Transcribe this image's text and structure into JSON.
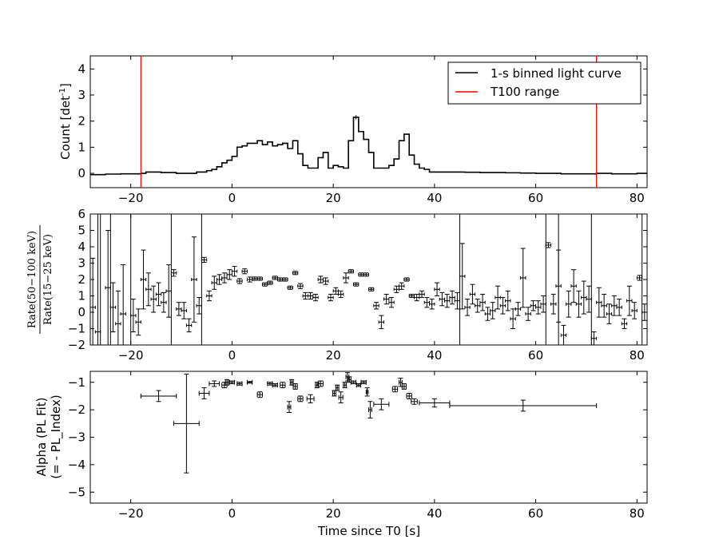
{
  "chart_data": [
    {
      "type": "line",
      "panel": "light-curve",
      "ylabel": "Count [det",
      "ylabel_sup": "-1",
      "ylabel_close": "]",
      "xlim": [
        -28,
        82
      ],
      "ylim": [
        -0.55,
        4.5
      ],
      "yticks": [
        0,
        1,
        2,
        3,
        4
      ],
      "xticks": [
        -20,
        0,
        20,
        40,
        60,
        80
      ],
      "legend_position": "top-right",
      "series": [
        {
          "name": "1-s binned light curve",
          "color": "#000000",
          "style": "step",
          "x": [
            -28,
            -27,
            -26,
            -25,
            -24,
            -23,
            -22,
            -21,
            -20,
            -19,
            -18,
            -17,
            -16,
            -15,
            -14,
            -13,
            -12,
            -11,
            -10,
            -9,
            -8,
            -7,
            -6,
            -5,
            -4,
            -3,
            -2,
            -1,
            0,
            1,
            2,
            3,
            4,
            5,
            6,
            7,
            8,
            9,
            10,
            11,
            12,
            13,
            14,
            15,
            16,
            17,
            18,
            19,
            20,
            21,
            22,
            23,
            24,
            25,
            26,
            27,
            28,
            29,
            30,
            31,
            32,
            33,
            34,
            35,
            36,
            37,
            38,
            39,
            40,
            41,
            42,
            43,
            44,
            45,
            46,
            47,
            48,
            49,
            50,
            51,
            52,
            53,
            54,
            55,
            56,
            57,
            58,
            59,
            60,
            61,
            62,
            63,
            64,
            65,
            66,
            67,
            68,
            69,
            70,
            71,
            72,
            73,
            74,
            75,
            76,
            77,
            78,
            79,
            80,
            81
          ],
          "y": [
            -0.05,
            -0.05,
            -0.05,
            -0.03,
            -0.03,
            -0.03,
            -0.02,
            -0.02,
            -0.02,
            -0.02,
            0.0,
            0.05,
            0.05,
            0.05,
            0.03,
            0.03,
            0.03,
            0.0,
            0.0,
            0.0,
            0.0,
            0.05,
            0.05,
            0.1,
            0.15,
            0.25,
            0.4,
            0.5,
            0.65,
            1.0,
            1.05,
            1.15,
            1.15,
            1.25,
            1.1,
            1.2,
            1.05,
            1.1,
            1.15,
            0.95,
            1.25,
            0.75,
            0.3,
            0.2,
            0.2,
            0.6,
            0.8,
            0.2,
            0.3,
            0.25,
            0.2,
            1.25,
            2.15,
            1.6,
            1.3,
            0.8,
            0.2,
            0.2,
            0.2,
            0.3,
            0.55,
            1.25,
            1.5,
            0.7,
            0.35,
            0.2,
            0.15,
            0.05,
            0.05,
            0.05,
            0.05,
            0.05,
            0.05,
            0.05,
            0.04,
            0.04,
            0.04,
            0.03,
            0.03,
            0.03,
            0.03,
            0.03,
            0.02,
            0.02,
            0.02,
            0.01,
            0.01,
            0.01,
            0.0,
            0.0,
            0.0,
            0.0,
            0.0,
            -0.02,
            -0.02,
            -0.02,
            -0.02,
            -0.02,
            -0.02,
            -0.02,
            0.0,
            0.0,
            0.0,
            -0.02,
            -0.02,
            -0.02,
            -0.02,
            -0.02,
            0.0,
            0.0
          ],
          "error_at": [
            {
              "x": 24.5,
              "y": 2.15,
              "err": 0.08
            }
          ]
        },
        {
          "name": "T100 range",
          "color": "#ff0000",
          "style": "vline",
          "x": [
            -18,
            72
          ]
        }
      ]
    },
    {
      "type": "scatter",
      "panel": "hardness-ratio",
      "ylabel_numerator": "Rate(50−100 keV)",
      "ylabel_denominator": "Rate(15−25 keV)",
      "xlim": [
        -28,
        82
      ],
      "ylim": [
        -2,
        6
      ],
      "yticks": [
        -2,
        -1,
        0,
        1,
        2,
        3,
        4,
        5,
        6
      ],
      "xticks": [
        -20,
        0,
        20,
        40,
        60,
        80
      ],
      "series": [
        {
          "name": "",
          "color": "#000000",
          "points": [
            [
              -27.5,
              0.3,
              3.0
            ],
            [
              -26.5,
              -1.2,
              8.0
            ],
            [
              -24.5,
              1.5,
              3.5
            ],
            [
              -23.5,
              0.3,
              1.5
            ],
            [
              -22.5,
              -0.7,
              2.0
            ],
            [
              -21.5,
              -0.1,
              3.0
            ],
            [
              -19.5,
              -0.2,
              1.0
            ],
            [
              -18.5,
              -0.6,
              0.8
            ],
            [
              -17.5,
              2.0,
              1.8
            ],
            [
              -16.5,
              1.4,
              1.0
            ],
            [
              -15.5,
              0.8,
              0.8
            ],
            [
              -14.5,
              1.1,
              0.7
            ],
            [
              -13.5,
              0.6,
              0.6
            ],
            [
              -12.5,
              1.3,
              1.6
            ],
            [
              -11.5,
              2.4,
              0.2
            ],
            [
              -10.5,
              0.2,
              0.4
            ],
            [
              -9.5,
              0.1,
              0.5
            ],
            [
              -8.5,
              -0.8,
              0.4
            ],
            [
              -7.5,
              2.0,
              2.6
            ],
            [
              -6.5,
              0.4,
              0.5
            ],
            [
              -5.5,
              3.2,
              0.15
            ],
            [
              -4.5,
              1.0,
              0.3
            ],
            [
              -3.5,
              1.8,
              0.4
            ],
            [
              -2.5,
              2.0,
              0.3
            ],
            [
              -1.5,
              2.1,
              0.3
            ],
            [
              -0.5,
              2.3,
              0.3
            ],
            [
              0.5,
              2.5,
              0.3
            ],
            [
              1.5,
              1.9,
              0.15
            ],
            [
              2.5,
              2.5,
              0.15
            ],
            [
              3.5,
              2.0,
              0.15
            ],
            [
              4.5,
              2.05,
              0.1
            ],
            [
              5.5,
              2.05,
              0.1
            ],
            [
              6.5,
              1.7,
              0.1
            ],
            [
              7.5,
              1.8,
              0.1
            ],
            [
              8.5,
              2.1,
              0.1
            ],
            [
              9.5,
              2.0,
              0.1
            ],
            [
              10.5,
              2.0,
              0.1
            ],
            [
              11.5,
              1.5,
              0.1
            ],
            [
              12.5,
              2.4,
              0.1
            ],
            [
              13.5,
              1.6,
              0.15
            ],
            [
              14.5,
              1.0,
              0.2
            ],
            [
              15.5,
              1.0,
              0.2
            ],
            [
              16.5,
              0.9,
              0.2
            ],
            [
              17.5,
              2.0,
              0.2
            ],
            [
              18.5,
              1.9,
              0.2
            ],
            [
              19.5,
              0.9,
              0.2
            ],
            [
              20.5,
              1.3,
              0.2
            ],
            [
              21.5,
              1.1,
              0.2
            ],
            [
              22.5,
              2.1,
              0.3
            ],
            [
              23.5,
              2.5,
              0.1
            ],
            [
              24.5,
              1.7,
              0.1
            ],
            [
              25.5,
              2.3,
              0.1
            ],
            [
              26.5,
              2.3,
              0.1
            ],
            [
              27.5,
              1.4,
              0.1
            ],
            [
              28.5,
              0.4,
              0.2
            ],
            [
              29.5,
              -0.6,
              0.4
            ],
            [
              30.5,
              0.8,
              0.3
            ],
            [
              31.5,
              0.6,
              0.3
            ],
            [
              32.5,
              1.4,
              0.2
            ],
            [
              33.5,
              1.6,
              0.2
            ],
            [
              34.5,
              2.0,
              0.1
            ],
            [
              35.5,
              1.0,
              0.1
            ],
            [
              36.5,
              0.9,
              0.2
            ],
            [
              37.5,
              1.1,
              0.2
            ],
            [
              38.5,
              0.6,
              0.3
            ],
            [
              39.5,
              0.5,
              0.3
            ],
            [
              40.5,
              1.4,
              0.4
            ],
            [
              41.5,
              0.8,
              0.4
            ],
            [
              42.5,
              0.7,
              0.4
            ],
            [
              43.5,
              0.9,
              0.4
            ],
            [
              44.5,
              0.7,
              0.5
            ],
            [
              45.5,
              2.2,
              2.0
            ],
            [
              46.5,
              0.3,
              0.5
            ],
            [
              47.5,
              1.1,
              0.6
            ],
            [
              48.5,
              0.4,
              0.4
            ],
            [
              49.5,
              0.6,
              0.5
            ],
            [
              50.5,
              -0.1,
              0.4
            ],
            [
              51.5,
              0.1,
              0.5
            ],
            [
              52.5,
              0.9,
              0.7
            ],
            [
              53.5,
              0.4,
              0.5
            ],
            [
              54.5,
              0.7,
              0.6
            ],
            [
              55.5,
              -0.4,
              0.6
            ],
            [
              56.5,
              0.2,
              0.4
            ],
            [
              57.5,
              2.1,
              1.8
            ],
            [
              58.5,
              -0.1,
              0.4
            ],
            [
              59.5,
              0.4,
              0.3
            ],
            [
              60.5,
              0.3,
              0.4
            ],
            [
              61.5,
              0.5,
              0.5
            ],
            [
              62.5,
              4.1,
              0.15
            ],
            [
              63.5,
              0.5,
              0.6
            ],
            [
              64.5,
              1.6,
              2.2
            ],
            [
              65.5,
              -1.4,
              0.6
            ],
            [
              66.5,
              0.5,
              0.8
            ],
            [
              67.5,
              1.6,
              1.0
            ],
            [
              68.5,
              0.5,
              0.8
            ],
            [
              69.5,
              0.9,
              1.0
            ],
            [
              70.5,
              0.8,
              0.8
            ],
            [
              71.5,
              -1.6,
              0.4
            ],
            [
              72.5,
              0.6,
              0.9
            ],
            [
              73.5,
              0.4,
              0.7
            ],
            [
              74.5,
              -0.1,
              0.6
            ],
            [
              75.5,
              0.4,
              0.6
            ],
            [
              76.5,
              0.3,
              0.5
            ],
            [
              77.5,
              -0.7,
              0.3
            ],
            [
              78.5,
              0.7,
              0.9
            ],
            [
              79.5,
              0.1,
              0.5
            ],
            [
              80.5,
              2.1,
              0.15
            ],
            [
              81.5,
              0.0,
              0.5
            ]
          ],
          "unbounded_vlines_x": [
            -26,
            -24,
            -20,
            -12,
            -6,
            45,
            62,
            64.5,
            71,
            81
          ]
        }
      ]
    },
    {
      "type": "scatter",
      "panel": "alpha",
      "ylabel": "Alpha (PL Fit)",
      "ylabel2": "(= - PL_Index)",
      "xlabel": "Time since T0 [s]",
      "xlim": [
        -28,
        82
      ],
      "ylim": [
        -5.4,
        -0.6
      ],
      "yticks": [
        -5,
        -4,
        -3,
        -2,
        -1
      ],
      "xticks": [
        -20,
        0,
        20,
        40,
        60,
        80
      ],
      "series": [
        {
          "name": "",
          "color": "#000000",
          "points": [
            [
              -14.5,
              3.5,
              -1.5,
              0.2
            ],
            [
              -9,
              2.5,
              -2.5,
              1.8
            ],
            [
              -5.5,
              1.0,
              -1.4,
              0.2
            ],
            [
              -3.5,
              1.0,
              -1.05,
              0.1
            ],
            [
              -1.5,
              0.5,
              -1.1,
              0.1
            ],
            [
              -1,
              0.3,
              -1.0,
              0.1
            ],
            [
              0,
              0.5,
              -1.0,
              0.05
            ],
            [
              1.5,
              0.5,
              -1.05,
              0.05
            ],
            [
              3.5,
              0.5,
              -1.0,
              0.03
            ],
            [
              5.5,
              0.5,
              -1.45,
              0.1
            ],
            [
              7.5,
              0.5,
              -1.05,
              0.05
            ],
            [
              8.5,
              0.5,
              -1.1,
              0.05
            ],
            [
              10,
              0.5,
              -1.1,
              0.1
            ],
            [
              11.3,
              0.3,
              -1.9,
              0.2
            ],
            [
              11.8,
              0.3,
              -1.0,
              0.1
            ],
            [
              12.5,
              0.4,
              -1.15,
              0.1
            ],
            [
              13.5,
              0.5,
              -1.6,
              0.1
            ],
            [
              15.5,
              0.7,
              -1.6,
              0.15
            ],
            [
              16.8,
              0.3,
              -1.1,
              0.1
            ],
            [
              17.5,
              0.5,
              -1.05,
              0.1
            ],
            [
              20.2,
              0.3,
              -1.4,
              0.1
            ],
            [
              20.8,
              0.3,
              -1.2,
              0.1
            ],
            [
              21.5,
              0.4,
              -1.55,
              0.2
            ],
            [
              22.3,
              0.3,
              -1.1,
              0.1
            ],
            [
              22.8,
              0.3,
              -0.8,
              0.15
            ],
            [
              23.2,
              0.3,
              -0.9,
              0.1
            ],
            [
              24,
              0.5,
              -1.0,
              0.05
            ],
            [
              25,
              0.4,
              -1.1,
              0.05
            ],
            [
              26,
              0.5,
              -1.0,
              0.05
            ],
            [
              26.7,
              0.2,
              -1.35,
              0.15
            ],
            [
              27.3,
              0.3,
              -2.0,
              0.3
            ],
            [
              29.5,
              1.5,
              -1.8,
              0.2
            ],
            [
              32.2,
              0.5,
              -1.25,
              0.1
            ],
            [
              33.3,
              0.3,
              -1.0,
              0.15
            ],
            [
              34,
              0.4,
              -1.15,
              0.1
            ],
            [
              35,
              0.5,
              -1.5,
              0.1
            ],
            [
              36,
              0.6,
              -1.7,
              0.1
            ],
            [
              40,
              3.0,
              -1.75,
              0.15
            ],
            [
              57.5,
              14.5,
              -1.85,
              0.2
            ]
          ]
        }
      ]
    }
  ]
}
